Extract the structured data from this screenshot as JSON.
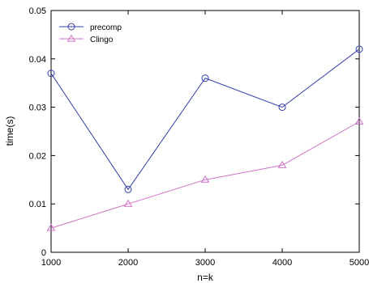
{
  "chart_data": {
    "type": "line",
    "xlabel": "n=k",
    "ylabel": "time(s)",
    "x": [
      1000,
      2000,
      3000,
      4000,
      5000
    ],
    "xlim": [
      1000,
      5000
    ],
    "ylim": [
      0,
      0.05
    ],
    "xticks": [
      "1000",
      "2000",
      "3000",
      "4000",
      "5000"
    ],
    "yticks": [
      "0",
      "0.01",
      "0.02",
      "0.03",
      "0.04",
      "0.05"
    ],
    "grid": false,
    "legend_position": "top-left",
    "series": [
      {
        "name": "precomp",
        "values": [
          0.037,
          0.013,
          0.036,
          0.03,
          0.042
        ],
        "color": "#3340a8",
        "marker": "circle"
      },
      {
        "name": "Clingo",
        "values": [
          0.005,
          0.01,
          0.015,
          0.018,
          0.027
        ],
        "color": "#d070c8",
        "marker": "triangle"
      }
    ]
  }
}
